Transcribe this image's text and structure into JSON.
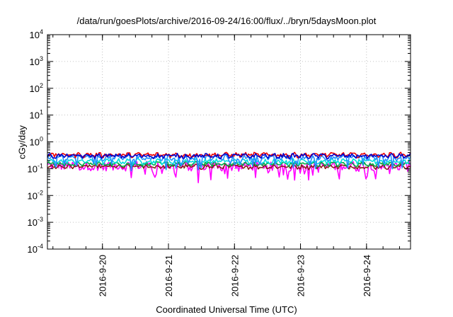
{
  "chart_data": {
    "type": "line",
    "title": "/data/run/goesPlots/archive/2016-09-24/16:00/flux/../bryn/5daysMoon.plot",
    "xlabel": "Coordinated Universal Time (UTC)",
    "ylabel": "cGy/day",
    "x_ticks": [
      "2016-9-20",
      "2016-9-21",
      "2016-9-22",
      "2016-9-23",
      "2016-9-24"
    ],
    "y_ticks": [
      "10^-4",
      "10^-3",
      "10^-2",
      "10^-1",
      "10^0",
      "10^1",
      "10^2",
      "10^3",
      "10^4"
    ],
    "y_scale": "log",
    "ylim": [
      0.0001,
      10000
    ],
    "xlim": [
      "2016-09-19T04:00",
      "2016-09-24T16:00"
    ],
    "grid": true,
    "series": [
      {
        "color": "#ff00ff",
        "base": 0.13,
        "noise": 0.05,
        "dips": true
      },
      {
        "color": "#8b1a1a",
        "base": 0.12,
        "noise": 0.02,
        "dips": false
      },
      {
        "color": "#00aa44",
        "base": 0.15,
        "noise": 0.025,
        "dips": false
      },
      {
        "color": "#00dddd",
        "base": 0.19,
        "noise": 0.035,
        "dips": false
      },
      {
        "color": "#1e90ff",
        "base": 0.26,
        "noise": 0.05,
        "dips": true
      },
      {
        "color": "#ee0000",
        "base": 0.33,
        "noise": 0.055,
        "dips": false
      },
      {
        "color": "#0000cc",
        "base": 0.3,
        "noise": 0.05,
        "dips": false
      }
    ]
  }
}
